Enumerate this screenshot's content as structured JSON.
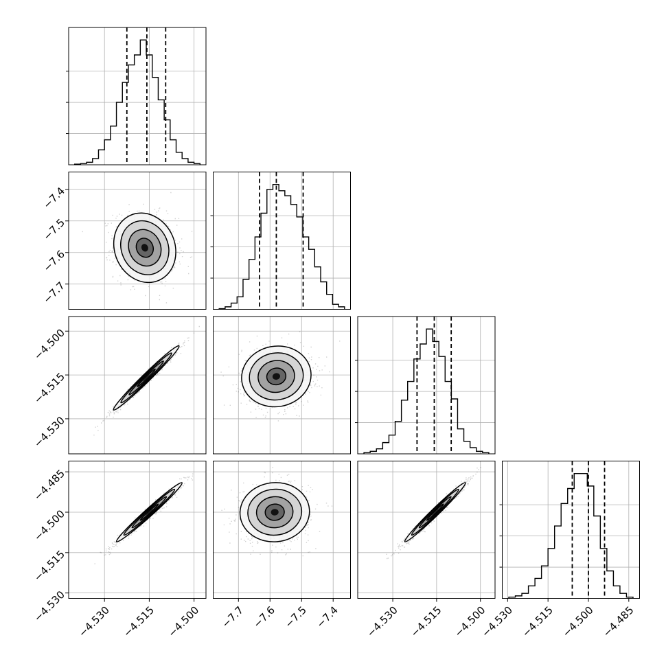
{
  "chart_data": {
    "type": "corner",
    "title": "",
    "params": [
      {
        "range": [
          -4.542,
          -4.496
        ],
        "ticks": [
          -4.53,
          -4.515,
          -4.5
        ],
        "labels": [
          "−4.530",
          "−4.515",
          "−4.500"
        ],
        "quantiles": [
          -4.5225,
          -4.5158,
          -4.5095
        ]
      },
      {
        "range": [
          -7.78,
          -7.345
        ],
        "ticks": [
          -7.7,
          -7.6,
          -7.5,
          -7.4
        ],
        "labels": [
          "−7.7",
          "−7.6",
          "−7.5",
          "−7.4"
        ],
        "quantiles": [
          -7.633,
          -7.58,
          -7.495
        ]
      },
      {
        "range": [
          -4.542,
          -4.495
        ],
        "ticks": [
          -4.53,
          -4.515,
          -4.5
        ],
        "labels": [
          "−4.530",
          "−4.515",
          "−4.500"
        ],
        "quantiles": [
          -4.5217,
          -4.5158,
          -4.51
        ]
      },
      {
        "range": [
          -4.532,
          -4.481
        ],
        "ticks": [
          -4.53,
          -4.515,
          -4.5,
          -4.485
        ],
        "labels": [
          "−4.530",
          "−4.515",
          "−4.500",
          "−4.485"
        ],
        "quantiles": [
          -4.506,
          -4.5,
          -4.494
        ]
      }
    ],
    "histograms": [
      [
        0.005,
        0.01,
        0.02,
        0.05,
        0.12,
        0.2,
        0.31,
        0.5,
        0.66,
        0.8,
        0.88,
        1.0,
        0.88,
        0.7,
        0.52,
        0.36,
        0.2,
        0.1,
        0.05,
        0.02,
        0.01
      ],
      [
        0.005,
        0.02,
        0.05,
        0.1,
        0.24,
        0.4,
        0.58,
        0.77,
        0.96,
        1.0,
        0.95,
        0.91,
        0.84,
        0.74,
        0.58,
        0.48,
        0.34,
        0.22,
        0.12,
        0.04,
        0.02
      ],
      [
        0.01,
        0.02,
        0.04,
        0.09,
        0.15,
        0.26,
        0.43,
        0.58,
        0.76,
        0.88,
        1.0,
        0.9,
        0.78,
        0.58,
        0.44,
        0.2,
        0.1,
        0.05,
        0.02,
        0.01
      ],
      [
        0.01,
        0.02,
        0.04,
        0.1,
        0.16,
        0.26,
        0.4,
        0.58,
        0.76,
        0.88,
        1.0,
        1.0,
        0.9,
        0.66,
        0.4,
        0.22,
        0.1,
        0.04,
        0.01
      ]
    ],
    "pairs": [
      {
        "row": 1,
        "col": 0,
        "center": [
          -4.5165,
          -7.585
        ],
        "sigma": [
          0.0052,
          0.055
        ],
        "rho": -0.12
      },
      {
        "row": 2,
        "col": 0,
        "center": [
          -4.516,
          -4.516
        ],
        "sigma": [
          0.0055,
          0.0055
        ],
        "rho": 0.985
      },
      {
        "row": 2,
        "col": 1,
        "center": [
          -7.58,
          -4.5155
        ],
        "sigma": [
          0.055,
          0.0052
        ],
        "rho": 0.05
      },
      {
        "row": 3,
        "col": 0,
        "center": [
          -4.515,
          -4.5
        ],
        "sigma": [
          0.0055,
          0.0055
        ],
        "rho": 0.985
      },
      {
        "row": 3,
        "col": 1,
        "center": [
          -7.585,
          -4.5
        ],
        "sigma": [
          0.055,
          0.0055
        ],
        "rho": 0.03
      },
      {
        "row": 3,
        "col": 2,
        "center": [
          -4.5155,
          -4.5
        ],
        "sigma": [
          0.0052,
          0.0055
        ],
        "rho": 0.985
      }
    ],
    "grid": true,
    "xlabel": "",
    "ylabel": ""
  }
}
